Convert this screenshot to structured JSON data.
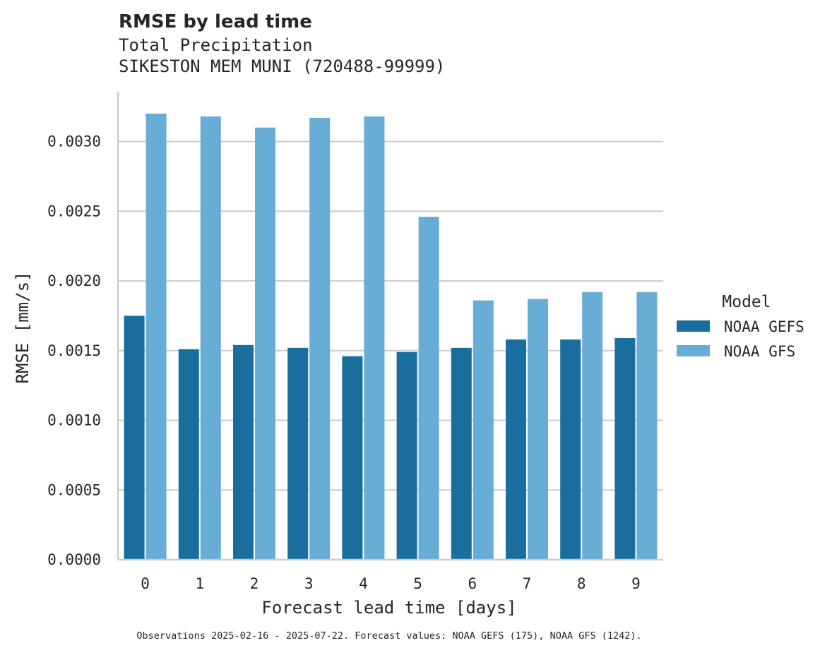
{
  "chart_data": {
    "type": "bar",
    "title": "RMSE by lead time",
    "subtitle": [
      "Total Precipitation",
      "SIKESTON MEM MUNI (720488-99999)"
    ],
    "xlabel": "Forecast lead time [days]",
    "ylabel": "RMSE [mm/s]",
    "categories": [
      "0",
      "1",
      "2",
      "3",
      "4",
      "5",
      "6",
      "7",
      "8",
      "9"
    ],
    "series": [
      {
        "name": "NOAA GEFS",
        "color": "#1a6e9e",
        "values": [
          0.00175,
          0.00151,
          0.00154,
          0.00152,
          0.00146,
          0.00149,
          0.00152,
          0.00158,
          0.00158,
          0.00159
        ]
      },
      {
        "name": "NOAA GFS",
        "color": "#67add6",
        "values": [
          0.0032,
          0.00318,
          0.0031,
          0.00317,
          0.00318,
          0.00246,
          0.00186,
          0.00187,
          0.00192,
          0.00192
        ]
      }
    ],
    "ylim": [
      0,
      0.00336
    ],
    "yticks": [
      "0.0000",
      "0.0005",
      "0.0010",
      "0.0015",
      "0.0020",
      "0.0025",
      "0.0030"
    ],
    "ytick_values": [
      0,
      0.0005,
      0.001,
      0.0015,
      0.002,
      0.0025,
      0.003
    ],
    "grid": "horizontal",
    "legend": {
      "title": "Model",
      "position": "right"
    },
    "caption": "Observations 2025-02-16 - 2025-07-22. Forecast values: NOAA GEFS (175), NOAA GFS (1242)."
  }
}
